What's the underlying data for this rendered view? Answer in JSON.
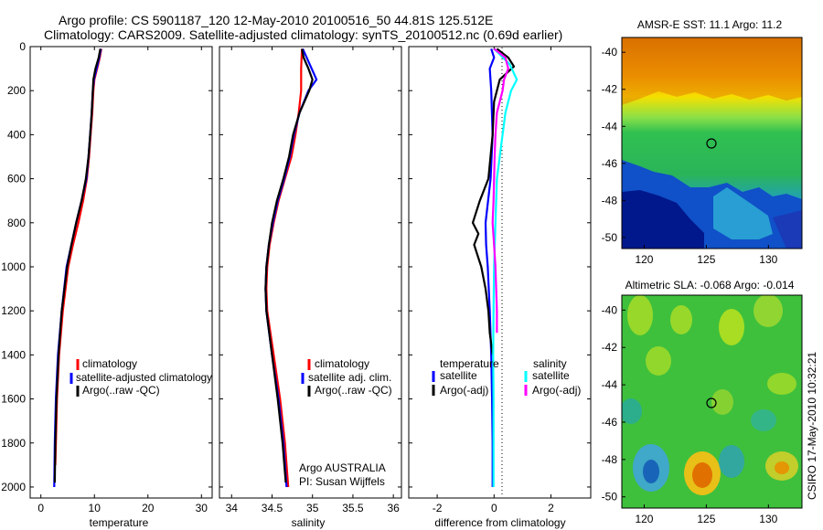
{
  "header": {
    "line1": "Argo profile: CS 5901187_120 12-May-2010 20100516_50 44.81S 125.512E",
    "line2": "Climatology: CARS2009. Satellite-adjusted climatology: synTS_20100512.nc (0.69d earlier)"
  },
  "panels": [
    {
      "id": "temperature",
      "xlabel": "temperature",
      "xlim": [
        -2,
        32
      ],
      "xticks": [
        0,
        10,
        20,
        30
      ],
      "legend": {
        "title_left": "",
        "title_right": "",
        "entries": [
          {
            "label": "climatology",
            "color": "#ff0000"
          },
          {
            "label": "satellite-adjusted climatology",
            "color": "#0000ff"
          },
          {
            "label": "Argo(..raw -QC)",
            "color": "#000000"
          }
        ]
      }
    },
    {
      "id": "salinity",
      "xlabel": "salinity",
      "xlim": [
        33.85,
        36.1
      ],
      "xticks": [
        34,
        34.5,
        35,
        35.5,
        36
      ],
      "legend": {
        "entries": [
          {
            "label": "climatology",
            "color": "#ff0000"
          },
          {
            "label": "satellite adj. clim.",
            "color": "#0000ff"
          },
          {
            "label": "Argo(..raw -QC)",
            "color": "#000000"
          }
        ]
      },
      "note": [
        "Argo AUSTRALIA",
        "PI: Susan Wijffels"
      ]
    },
    {
      "id": "difference",
      "xlabel": "difference from climatology",
      "xlim": [
        -3,
        3.4
      ],
      "xticks": [
        -2,
        0,
        2
      ],
      "legend": {
        "col1_title": "temperature",
        "col2_title": "salinity",
        "col1": [
          {
            "label": "satellite",
            "color": "#0000ff"
          },
          {
            "label": "Argo(-adj)",
            "color": "#000000"
          }
        ],
        "col2": [
          {
            "label": "satellite",
            "color": "#00ffff"
          },
          {
            "label": "Argo(-adj)",
            "color": "#ff00ff"
          }
        ]
      }
    }
  ],
  "depth_axis": {
    "ylim": [
      0,
      2050
    ],
    "yticks": [
      0,
      200,
      400,
      600,
      800,
      1000,
      1200,
      1400,
      1600,
      1800,
      2000
    ]
  },
  "maps": [
    {
      "id": "sst",
      "title": "AMSR-E SST: 11.1 Argo: 11.2",
      "xticks": [
        "120",
        "125",
        "130"
      ],
      "yticks": [
        "-40",
        "-42",
        "-44",
        "-46",
        "-48",
        "-50"
      ],
      "marker": {
        "lon": 125.5,
        "lat": -44.8
      }
    },
    {
      "id": "sla",
      "title": "Altimetric SLA: -0.068 Argo: -0.014",
      "xticks": [
        "120",
        "125",
        "130"
      ],
      "yticks": [
        "-40",
        "-42",
        "-44",
        "-46",
        "-48",
        "-50"
      ],
      "marker": {
        "lon": 125.5,
        "lat": -44.8
      }
    }
  ],
  "side_label": "CSIRO 17-May-2010 10:32:21",
  "chart_data": [
    {
      "type": "line",
      "xlabel": "temperature",
      "ylabel": "",
      "xlim": [
        -2,
        32
      ],
      "ylim": [
        2050,
        0
      ],
      "series": [
        {
          "name": "climatology",
          "color": "#ff0000",
          "depth": [
            10,
            50,
            100,
            150,
            200,
            300,
            400,
            500,
            600,
            700,
            800,
            900,
            1000,
            1200,
            1400,
            1600,
            1800,
            1900
          ],
          "values": [
            11.3,
            11.0,
            10.5,
            10.0,
            9.8,
            9.6,
            9.3,
            9.0,
            8.6,
            7.9,
            7.0,
            6.0,
            5.1,
            4.1,
            3.4,
            3.0,
            2.8,
            2.7
          ]
        },
        {
          "name": "satellite-adjusted climatology",
          "color": "#0000ff",
          "depth": [
            10,
            50,
            100,
            150,
            200,
            300,
            400,
            500,
            600,
            700,
            800,
            900,
            1000,
            1200,
            1400,
            1600,
            1800,
            2000
          ],
          "values": [
            11.2,
            10.9,
            10.4,
            9.9,
            9.7,
            9.5,
            9.2,
            8.9,
            8.5,
            7.6,
            6.6,
            5.7,
            4.8,
            3.9,
            3.2,
            2.8,
            2.6,
            2.5
          ]
        },
        {
          "name": "Argo(..raw -QC)",
          "color": "#000000",
          "depth": [
            10,
            50,
            100,
            150,
            200,
            300,
            400,
            500,
            600,
            700,
            800,
            900,
            1000,
            1200,
            1400,
            1600,
            1800,
            1980
          ],
          "values": [
            11.1,
            10.8,
            10.2,
            9.8,
            9.7,
            9.5,
            9.2,
            8.9,
            8.4,
            7.6,
            6.6,
            5.7,
            4.9,
            3.9,
            3.3,
            2.9,
            2.7,
            2.6
          ]
        }
      ]
    },
    {
      "type": "line",
      "xlabel": "salinity",
      "ylabel": "",
      "xlim": [
        33.85,
        36.1
      ],
      "ylim": [
        2050,
        0
      ],
      "series": [
        {
          "name": "climatology",
          "color": "#ff0000",
          "depth": [
            10,
            100,
            200,
            300,
            400,
            500,
            600,
            700,
            800,
            900,
            1000,
            1100,
            1200,
            1400,
            1600,
            1800,
            2000
          ],
          "values": [
            34.87,
            34.86,
            34.86,
            34.83,
            34.79,
            34.74,
            34.66,
            34.58,
            34.52,
            34.47,
            34.44,
            34.43,
            34.44,
            34.52,
            34.6,
            34.66,
            34.7
          ]
        },
        {
          "name": "satellite adj. clim.",
          "color": "#0000ff",
          "depth": [
            10,
            100,
            150,
            200,
            300,
            400,
            500,
            600,
            700,
            800,
            900,
            1000,
            1100,
            1200,
            1400,
            1600,
            1800,
            2000
          ],
          "values": [
            34.88,
            34.99,
            35.05,
            34.95,
            34.84,
            34.77,
            34.72,
            34.65,
            34.57,
            34.51,
            34.46,
            34.43,
            34.42,
            34.43,
            34.5,
            34.58,
            34.64,
            34.68
          ]
        },
        {
          "name": "Argo(..raw -QC)",
          "color": "#000000",
          "depth": [
            10,
            50,
            100,
            150,
            200,
            300,
            400,
            500,
            600,
            700,
            800,
            900,
            1000,
            1100,
            1200,
            1400,
            1600,
            1800,
            1980
          ],
          "values": [
            34.87,
            34.89,
            34.95,
            35.0,
            34.96,
            34.84,
            34.76,
            34.71,
            34.64,
            34.56,
            34.5,
            34.46,
            34.43,
            34.42,
            34.43,
            34.5,
            34.57,
            34.63,
            34.67
          ]
        }
      ]
    },
    {
      "type": "line",
      "xlabel": "difference from climatology",
      "ylabel": "",
      "xlim": [
        -3,
        3.4
      ],
      "ylim": [
        2050,
        0
      ],
      "series": [
        {
          "name": "temperature satellite",
          "color": "#0000ff",
          "depth": [
            10,
            50,
            100,
            200,
            400,
            600,
            800,
            900,
            1000,
            1200,
            1400,
            1600,
            1800,
            2000
          ],
          "values": [
            -0.1,
            0.0,
            -0.15,
            -0.1,
            -0.05,
            -0.12,
            -0.3,
            -0.28,
            -0.22,
            -0.15,
            -0.1,
            -0.07,
            -0.05,
            -0.05
          ]
        },
        {
          "name": "temperature Argo(-adj)",
          "color": "#000000",
          "depth": [
            10,
            50,
            90,
            150,
            250,
            400,
            600,
            700,
            800,
            850,
            900,
            1000,
            1100,
            1200,
            1300,
            1400
          ],
          "values": [
            0.1,
            0.5,
            0.7,
            0.2,
            0.0,
            -0.05,
            -0.2,
            -0.5,
            -0.75,
            -0.55,
            -0.7,
            -0.45,
            -0.3,
            -0.2,
            -0.15,
            -0.05
          ]
        },
        {
          "name": "salinity satellite",
          "color": "#00ffff",
          "depth": [
            10,
            80,
            150,
            200,
            300,
            400,
            500,
            600,
            800,
            1000,
            1200,
            1400,
            1600,
            1800,
            2000
          ],
          "values": [
            0.0,
            0.55,
            0.8,
            0.6,
            0.4,
            0.3,
            0.2,
            0.1,
            0.05,
            0.0,
            -0.02,
            -0.03,
            -0.02,
            -0.02,
            -0.02
          ]
        },
        {
          "name": "salinity Argo(-adj)",
          "color": "#ff00ff",
          "depth": [
            10,
            50,
            100,
            150,
            200,
            300,
            400,
            500,
            600,
            700,
            800,
            900,
            1000,
            1200,
            1300
          ],
          "values": [
            0.0,
            0.4,
            0.5,
            0.35,
            0.3,
            0.1,
            0.05,
            0.02,
            0.0,
            -0.02,
            -0.05,
            0.0,
            0.05,
            0.1,
            0.1
          ]
        }
      ]
    }
  ]
}
